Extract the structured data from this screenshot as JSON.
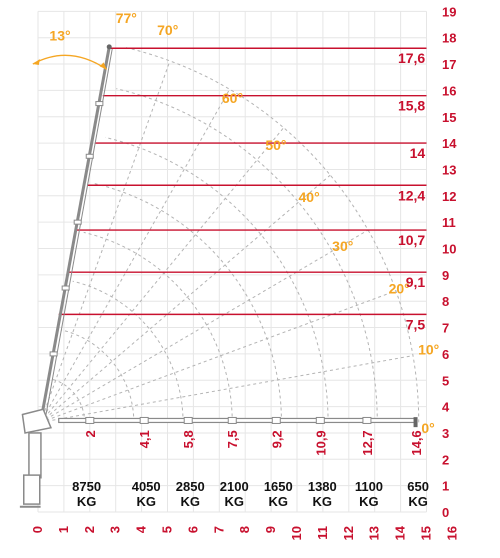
{
  "diagram": {
    "y_axis_labels": [
      "0",
      "1",
      "2",
      "3",
      "4",
      "5",
      "6",
      "7",
      "8",
      "9",
      "10",
      "11",
      "12",
      "13",
      "14",
      "15",
      "16",
      "17",
      "18",
      "19"
    ],
    "x_axis_labels": [
      "0",
      "1",
      "2",
      "3",
      "4",
      "5",
      "6",
      "7",
      "8",
      "9",
      "10",
      "11",
      "12",
      "13",
      "14",
      "15",
      "16"
    ],
    "reach_lines": [
      {
        "label": "17,6",
        "height": 17.6,
        "start_x": 2.7
      },
      {
        "label": "15,8",
        "height": 15.8,
        "start_x": 2.5
      },
      {
        "label": "14",
        "height": 14.0,
        "start_x": 2.2
      },
      {
        "label": "12,4",
        "height": 12.4,
        "start_x": 1.9
      },
      {
        "label": "10,7",
        "height": 10.7,
        "start_x": 1.5
      },
      {
        "label": "9,1",
        "height": 9.1,
        "start_x": 1.2
      },
      {
        "label": "7,5",
        "height": 7.5,
        "start_x": 0.8
      }
    ],
    "angles": [
      {
        "label": "77°",
        "deg": 77
      },
      {
        "label": "70°",
        "deg": 70
      },
      {
        "label": "60°",
        "deg": 60
      },
      {
        "label": "50°",
        "deg": 50
      },
      {
        "label": "40°",
        "deg": 40
      },
      {
        "label": "30°",
        "deg": 30
      },
      {
        "label": "20°",
        "deg": 20
      },
      {
        "label": "10°",
        "deg": 10
      },
      {
        "label": "0°",
        "deg": 0
      }
    ],
    "swing_angle_label": "13°",
    "outreach_labels": [
      {
        "label": "2",
        "x": 2.0
      },
      {
        "label": "4,1",
        "x": 4.1
      },
      {
        "label": "5,8",
        "x": 5.8
      },
      {
        "label": "7,5",
        "x": 7.5
      },
      {
        "label": "9,2",
        "x": 9.2
      },
      {
        "label": "10,9",
        "x": 10.9
      },
      {
        "label": "12,7",
        "x": 12.7
      },
      {
        "label": "14,6",
        "x": 14.6
      }
    ],
    "capacities": [
      {
        "value": "8750",
        "unit": "KG",
        "x": 1.8
      },
      {
        "value": "4050",
        "unit": "KG",
        "x": 4.1
      },
      {
        "value": "2850",
        "unit": "KG",
        "x": 5.8
      },
      {
        "value": "2100",
        "unit": "KG",
        "x": 7.5
      },
      {
        "value": "1650",
        "unit": "KG",
        "x": 9.2
      },
      {
        "value": "1380",
        "unit": "KG",
        "x": 10.9
      },
      {
        "value": "1100",
        "unit": "KG",
        "x": 12.7
      },
      {
        "value": "650",
        "unit": "KG",
        "x": 14.6
      }
    ],
    "colors": {
      "red": "#c8102e",
      "orange": "#f5a623",
      "grid": "#e6e6e6",
      "dashed": "#b4b4b4",
      "boom": "#8a8a8a",
      "text": "#111111"
    }
  }
}
